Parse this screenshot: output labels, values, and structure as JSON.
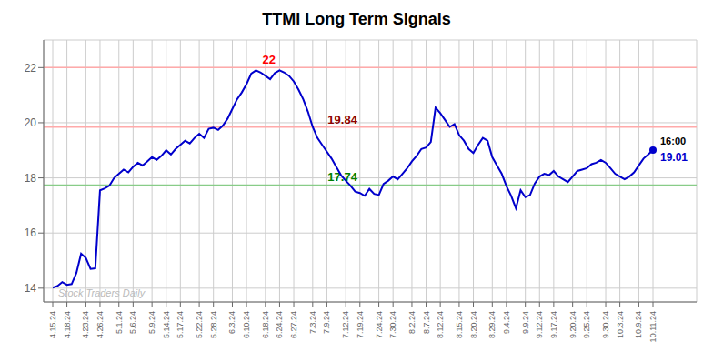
{
  "chart_data": {
    "type": "line",
    "title": "TTMI Long Term Signals",
    "categories": [
      "4.15.24",
      null,
      null,
      "4.18.24",
      null,
      null,
      null,
      "4.23.24",
      null,
      null,
      "4.26.24",
      null,
      null,
      null,
      "5.1.24",
      null,
      null,
      "5.6.24",
      null,
      null,
      null,
      "5.9.24",
      null,
      null,
      "5.14.24",
      null,
      null,
      "5.17.24",
      null,
      null,
      null,
      "5.22.24",
      null,
      null,
      "5.28.24",
      null,
      null,
      null,
      "6.3.24",
      null,
      null,
      "6.10.24",
      null,
      null,
      null,
      "6.18.24",
      null,
      null,
      "6.24.24",
      null,
      null,
      "6.27.24",
      null,
      null,
      null,
      "7.3.24",
      null,
      null,
      "7.9.24",
      null,
      null,
      null,
      "7.12.24",
      null,
      null,
      "7.19.24",
      null,
      null,
      null,
      "7.24.24",
      null,
      null,
      "7.30.24",
      null,
      null,
      null,
      "8.2.24",
      null,
      null,
      "8.7.24",
      null,
      null,
      "8.12.24",
      null,
      null,
      null,
      "8.15.24",
      null,
      null,
      "8.20.24",
      null,
      null,
      null,
      "8.29.24",
      null,
      null,
      "9.4.24",
      null,
      null,
      null,
      "9.9.24",
      null,
      null,
      "9.12.24",
      null,
      null,
      "9.17.24",
      null,
      null,
      null,
      "9.20.24",
      null,
      null,
      "9.25.24",
      null,
      null,
      null,
      "9.30.24",
      null,
      null,
      "10.3.24",
      null,
      null,
      null,
      "10.9.24",
      null,
      null,
      "10.11.24"
    ],
    "values": [
      14.02,
      14.08,
      14.22,
      14.12,
      14.15,
      14.55,
      15.25,
      15.1,
      14.7,
      14.72,
      17.55,
      17.62,
      17.72,
      18.0,
      18.15,
      18.3,
      18.2,
      18.4,
      18.55,
      18.45,
      18.6,
      18.75,
      18.65,
      18.8,
      19.0,
      18.85,
      19.05,
      19.2,
      19.35,
      19.25,
      19.45,
      19.6,
      19.45,
      19.78,
      19.82,
      19.74,
      19.9,
      20.15,
      20.5,
      20.85,
      21.1,
      21.4,
      21.78,
      21.9,
      21.82,
      21.7,
      21.58,
      21.8,
      21.9,
      21.82,
      21.7,
      21.5,
      21.2,
      20.85,
      20.4,
      19.85,
      19.45,
      19.2,
      18.95,
      18.7,
      18.4,
      18.1,
      17.9,
      17.72,
      17.5,
      17.45,
      17.35,
      17.6,
      17.42,
      17.38,
      17.78,
      17.9,
      18.05,
      17.95,
      18.15,
      18.35,
      18.6,
      18.8,
      19.05,
      19.1,
      19.3,
      20.55,
      20.35,
      20.1,
      19.85,
      19.95,
      19.55,
      19.35,
      19.05,
      18.9,
      19.2,
      19.45,
      19.35,
      18.75,
      18.45,
      18.15,
      17.7,
      17.35,
      16.9,
      17.55,
      17.3,
      17.38,
      17.8,
      18.05,
      18.15,
      18.1,
      18.25,
      18.05,
      17.95,
      17.85,
      18.05,
      18.25,
      18.3,
      18.35,
      18.5,
      18.55,
      18.65,
      18.55,
      18.35,
      18.15,
      18.05,
      17.95,
      18.05,
      18.2,
      18.45,
      18.7,
      18.85,
      19.01
    ],
    "color": "#0000cc",
    "ylim": [
      13.5,
      23.0
    ],
    "yticks": [
      14,
      16,
      18,
      20,
      22
    ],
    "grid": true,
    "reference_lines": [
      {
        "value": 22.0,
        "label": "22",
        "color": "#ffaaaa",
        "label_color": "red"
      },
      {
        "value": 19.84,
        "label": "19.84",
        "color": "#ffaaaa",
        "label_color": "darkred"
      },
      {
        "value": 17.74,
        "label": "17.74",
        "color": "#88cc88",
        "label_color": "green"
      }
    ],
    "end_annotation": {
      "time": "16:00",
      "value_label": "19.01",
      "color": "#0000cc"
    },
    "watermark": {
      "text": "Stock Traders Daily",
      "color": "#bbbbbb"
    }
  }
}
